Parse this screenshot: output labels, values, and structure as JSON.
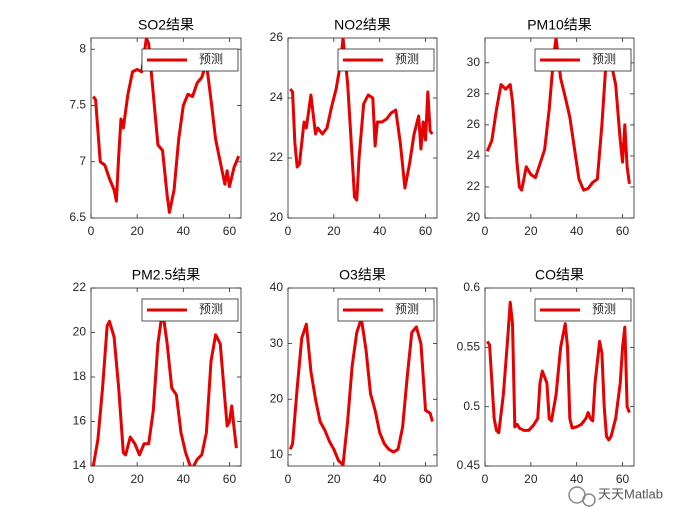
{
  "chart_data": [
    {
      "type": "line",
      "title": "SO2结果",
      "xlim": [
        0,
        65
      ],
      "xticks": [
        0,
        20,
        40,
        60
      ],
      "ylim": [
        6.5,
        8.1
      ],
      "yticks": [
        6.5,
        7,
        7.5,
        8
      ],
      "legend": "northeast",
      "x": [
        1,
        2,
        4,
        6,
        8,
        10,
        11,
        12,
        13,
        14,
        16,
        18,
        20,
        22,
        24,
        25,
        27,
        29,
        31,
        33,
        34,
        36,
        38,
        40,
        42,
        44,
        46,
        48,
        50,
        52,
        54,
        56,
        58,
        59,
        60,
        62,
        64
      ],
      "series": [
        {
          "name": "预测",
          "color": "#e60000",
          "values": [
            7.58,
            7.55,
            7.0,
            6.97,
            6.85,
            6.75,
            6.65,
            7.05,
            7.38,
            7.3,
            7.6,
            7.8,
            7.82,
            7.8,
            8.1,
            8.05,
            7.6,
            7.15,
            7.1,
            6.7,
            6.55,
            6.75,
            7.2,
            7.5,
            7.6,
            7.58,
            7.7,
            7.75,
            7.88,
            7.55,
            7.2,
            7.0,
            6.8,
            6.92,
            6.78,
            6.95,
            7.05
          ]
        }
      ]
    },
    {
      "type": "line",
      "title": "NO2结果",
      "xlim": [
        0,
        65
      ],
      "xticks": [
        0,
        20,
        40,
        60
      ],
      "ylim": [
        20,
        26
      ],
      "yticks": [
        20,
        22,
        24,
        26
      ],
      "legend": "northeast",
      "x": [
        1,
        2,
        3,
        4,
        5,
        7,
        8,
        10,
        12,
        13,
        15,
        17,
        19,
        21,
        23,
        24,
        26,
        28,
        29,
        30,
        31,
        33,
        35,
        37,
        38,
        39,
        41,
        43,
        45,
        47,
        49,
        51,
        53,
        55,
        57,
        58,
        59,
        60,
        61,
        62,
        63
      ],
      "series": [
        {
          "name": "预测",
          "color": "#e60000",
          "values": [
            24.3,
            24.2,
            22.5,
            21.7,
            21.8,
            23.2,
            23.0,
            24.1,
            22.8,
            23.0,
            22.8,
            23.0,
            23.7,
            24.3,
            25.2,
            26,
            24.5,
            22,
            20.7,
            20.6,
            22,
            23.8,
            24.1,
            24.0,
            22.4,
            23.2,
            23.2,
            23.3,
            23.5,
            23.6,
            22.5,
            21.0,
            21.8,
            22.8,
            23.4,
            22.3,
            23.2,
            22.6,
            24.2,
            22.9,
            22.8
          ]
        }
      ]
    },
    {
      "type": "line",
      "title": "PM10结果",
      "xlim": [
        0,
        65
      ],
      "xticks": [
        0,
        20,
        40,
        60
      ],
      "ylim": [
        20,
        31.6
      ],
      "yticks": [
        20,
        22,
        24,
        26,
        28,
        30
      ],
      "legend": "northeast",
      "x": [
        1,
        3,
        5,
        7,
        9,
        11,
        12,
        14,
        15,
        16,
        18,
        20,
        22,
        24,
        26,
        28,
        30,
        31,
        33,
        35,
        37,
        39,
        41,
        43,
        45,
        47,
        49,
        51,
        53,
        55,
        57,
        59,
        60,
        61,
        62,
        63
      ],
      "series": [
        {
          "name": "预测",
          "color": "#e60000",
          "values": [
            24.3,
            25,
            27,
            28.6,
            28.3,
            28.6,
            27.5,
            23.5,
            22,
            21.8,
            23.3,
            22.8,
            22.6,
            23.5,
            24.4,
            27,
            30.5,
            31.6,
            29,
            27.8,
            26.5,
            24.5,
            22.5,
            21.8,
            21.9,
            22.3,
            22.5,
            26,
            30.5,
            30,
            28.6,
            25,
            23.6,
            26,
            23.3,
            22.2
          ]
        }
      ]
    },
    {
      "type": "line",
      "title": "PM2.5结果",
      "xlim": [
        0,
        65
      ],
      "xticks": [
        0,
        20,
        40,
        60
      ],
      "ylim": [
        14,
        22
      ],
      "yticks": [
        14,
        16,
        18,
        20,
        22
      ],
      "legend": "northeast",
      "x": [
        1,
        3,
        5,
        7,
        8,
        10,
        12,
        14,
        15,
        17,
        19,
        21,
        23,
        25,
        27,
        29,
        31,
        33,
        35,
        37,
        39,
        41,
        43,
        44,
        46,
        48,
        50,
        52,
        54,
        56,
        58,
        59,
        60,
        61,
        62,
        63
      ],
      "series": [
        {
          "name": "预测",
          "color": "#e60000",
          "values": [
            14,
            15.2,
            17.5,
            20.3,
            20.5,
            19.8,
            17.5,
            14.6,
            14.5,
            15.3,
            15.0,
            14.5,
            15.0,
            15.0,
            16.5,
            19.5,
            21,
            19.5,
            17.5,
            17.2,
            15.5,
            14.6,
            14.0,
            13.9,
            14.3,
            14.5,
            15.5,
            18.7,
            19.9,
            19.5,
            17,
            15.8,
            16,
            16.7,
            15.7,
            14.8
          ]
        }
      ]
    },
    {
      "type": "line",
      "title": "O3结果",
      "xlim": [
        0,
        65
      ],
      "xticks": [
        0,
        20,
        40,
        60
      ],
      "ylim": [
        8,
        40
      ],
      "yticks": [
        10,
        20,
        30,
        40
      ],
      "legend": "northeast",
      "x": [
        1,
        2,
        4,
        6,
        8,
        10,
        12,
        14,
        16,
        18,
        20,
        22,
        24,
        26,
        28,
        30,
        32,
        34,
        36,
        38,
        40,
        42,
        44,
        46,
        48,
        50,
        52,
        54,
        56,
        58,
        60,
        62,
        63
      ],
      "series": [
        {
          "name": "预测",
          "color": "#e60000",
          "values": [
            11,
            12,
            22,
            31,
            33.5,
            25,
            20,
            16,
            14.5,
            12.5,
            11,
            9,
            8.2,
            16,
            26,
            32,
            34.5,
            29,
            21,
            18,
            14,
            12,
            11,
            10.5,
            11,
            15,
            24,
            32,
            33,
            30,
            18,
            17.5,
            16
          ]
        }
      ]
    },
    {
      "type": "line",
      "title": "CO结果",
      "xlim": [
        0,
        65
      ],
      "xticks": [
        0,
        20,
        40,
        60
      ],
      "ylim": [
        0.45,
        0.6
      ],
      "yticks": [
        0.45,
        0.5,
        0.55,
        0.6
      ],
      "legend": "northeast",
      "x": [
        1,
        2,
        4,
        5,
        6,
        8,
        10,
        11,
        12,
        13,
        14,
        15,
        17,
        19,
        21,
        22,
        23,
        24,
        25,
        26,
        27,
        28,
        29,
        31,
        33,
        35,
        36,
        37,
        38,
        40,
        42,
        44,
        45,
        46,
        47,
        48,
        50,
        51,
        52,
        53,
        54,
        55,
        57,
        59,
        60,
        61,
        62,
        63
      ],
      "series": [
        {
          "name": "预测",
          "color": "#e60000",
          "values": [
            0.555,
            0.552,
            0.49,
            0.48,
            0.478,
            0.51,
            0.56,
            0.588,
            0.57,
            0.483,
            0.485,
            0.482,
            0.48,
            0.48,
            0.484,
            0.487,
            0.49,
            0.52,
            0.53,
            0.525,
            0.52,
            0.49,
            0.488,
            0.51,
            0.55,
            0.57,
            0.55,
            0.49,
            0.482,
            0.483,
            0.485,
            0.49,
            0.495,
            0.49,
            0.488,
            0.52,
            0.555,
            0.545,
            0.5,
            0.475,
            0.472,
            0.475,
            0.49,
            0.52,
            0.55,
            0.567,
            0.5,
            0.495
          ]
        }
      ]
    }
  ],
  "watermark": "天天Matlab"
}
